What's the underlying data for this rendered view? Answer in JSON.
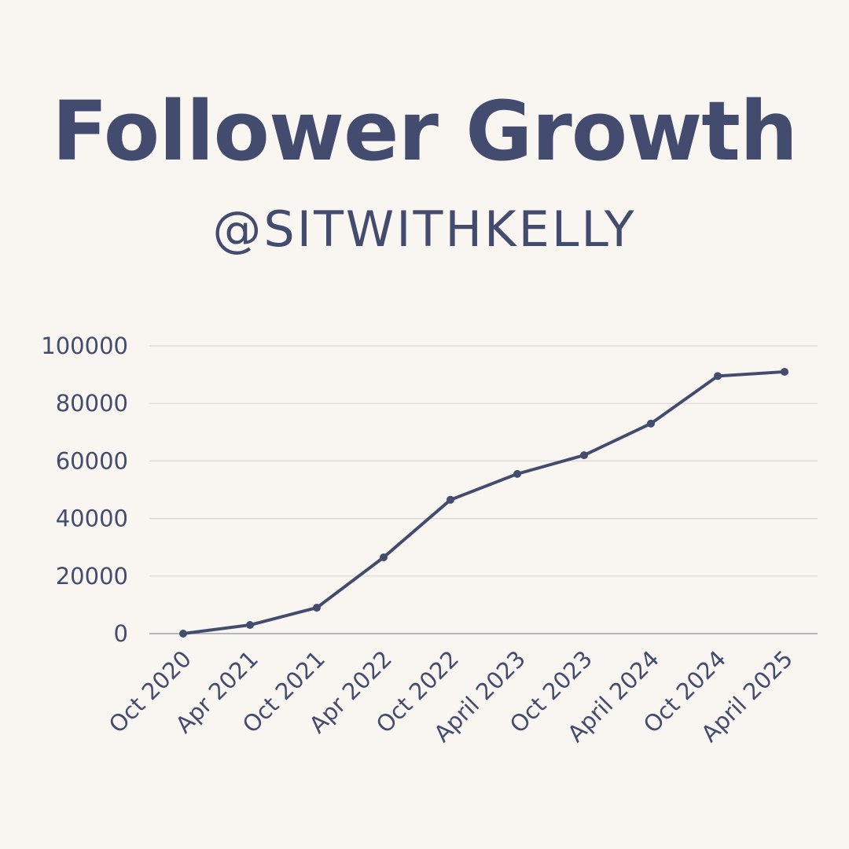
{
  "header": {
    "title": "Follower Growth",
    "subtitle": "@SITWITHKELLY"
  },
  "chart_data": {
    "type": "line",
    "title": "Follower Growth",
    "subtitle": "@SITWITHKELLY",
    "categories": [
      "Oct 2020",
      "Apr 2021",
      "Oct 2021",
      "Apr 2022",
      "Oct 2022",
      "April 2023",
      "Oct 2023",
      "April 2024",
      "Oct 2024",
      "April 2025"
    ],
    "series": [
      {
        "values": [
          0,
          3000,
          9000,
          26500,
          46500,
          55500,
          62000,
          73000,
          89500,
          91000
        ]
      }
    ],
    "xlabel": "",
    "ylabel": "",
    "ylim": [
      0,
      100000
    ],
    "yticks": [
      "0",
      "20000",
      "40000",
      "60000",
      "80000",
      "100000"
    ],
    "grid": true,
    "legend": "none",
    "colors": {
      "line": "#434c6e",
      "grid": "#d9d6d3",
      "background": "#f9f6f2"
    }
  }
}
